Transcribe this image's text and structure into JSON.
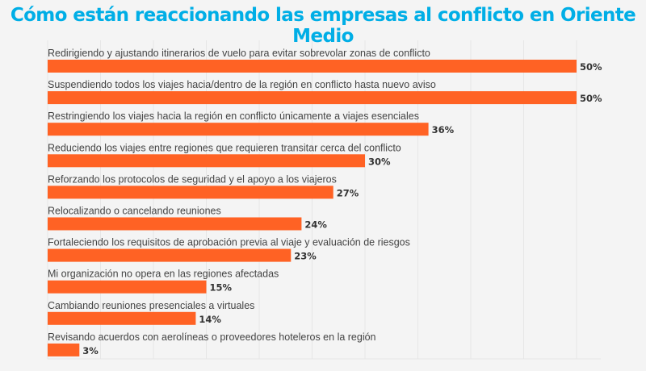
{
  "chart_data": {
    "type": "bar",
    "orientation": "horizontal",
    "title": "Cómo están reaccionando las empresas al conflicto en Oriente Medio",
    "categories": [
      "Redirigiendo y ajustando itinerarios de vuelo para evitar sobrevolar zonas de conflicto",
      "Suspendiendo todos los viajes hacia/dentro de la región en conflicto hasta nuevo aviso",
      "Restringiendo los viajes hacia la región en conflicto únicamente a viajes esenciales",
      "Reduciendo los viajes entre regiones que requieren transitar cerca del conflicto",
      "Reforzando los protocolos de seguridad y el apoyo a los viajeros",
      "Relocalizando o cancelando reuniones",
      "Fortaleciendo los requisitos de aprobación previa al viaje y evaluación de riesgos",
      "Mi organización no opera en las regiones afectadas",
      "Cambiando reuniones presenciales a virtuales",
      "Revisando acuerdos con aerolíneas o proveedores hoteleros en la región"
    ],
    "values": [
      50,
      50,
      36,
      30,
      27,
      24,
      23,
      15,
      14,
      3
    ],
    "data_labels": [
      "50%",
      "50%",
      "36%",
      "30%",
      "27%",
      "24%",
      "23%",
      "15%",
      "14%",
      "3%"
    ],
    "xlim": [
      0,
      52
    ],
    "grid": true,
    "colors": {
      "bar": "#ff6224",
      "title": "#00aee6",
      "background": "#f4f4f4",
      "grid": "#e6e6e6"
    }
  }
}
